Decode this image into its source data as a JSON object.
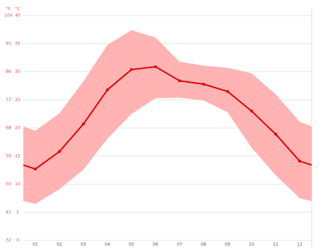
{
  "chart_data": {
    "type": "climate",
    "y_header": "°C",
    "y2_header": "°F",
    "categories": [
      "01",
      "02",
      "03",
      "04",
      "05",
      "06",
      "07",
      "08",
      "09",
      "10",
      "11",
      "12"
    ],
    "series": [
      {
        "color": "#e50000",
        "values": [
          12.7,
          15.8,
          20.7,
          26.8,
          30.4,
          30.9,
          28.4,
          27.8,
          26.5,
          23.0,
          18.9,
          14.1
        ]
      }
    ],
    "band": {
      "color": "#ffb3b3",
      "high": [
        19.5,
        22.6,
        28.3,
        34.8,
        37.4,
        36.1,
        31.8,
        31.1,
        30.7,
        29.7,
        26.0,
        21.1
      ],
      "low": [
        6.5,
        9.1,
        12.6,
        18.1,
        22.5,
        25.3,
        25.4,
        24.9,
        22.8,
        16.5,
        11.6,
        7.5
      ]
    },
    "ylim": [
      0,
      40
    ],
    "yticks": [
      0,
      5,
      10,
      15,
      20,
      25,
      30,
      35,
      40
    ],
    "y2lim": [
      32,
      104
    ],
    "y2ticks": [
      32,
      41,
      50,
      59,
      68,
      77,
      86,
      95,
      104
    ],
    "grid": true
  }
}
